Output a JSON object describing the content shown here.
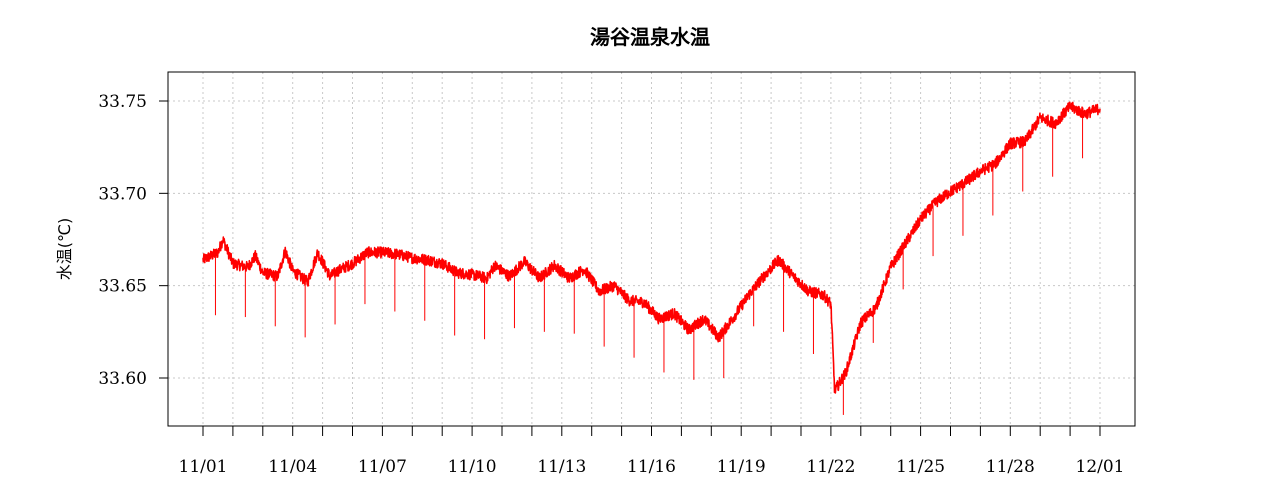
{
  "chart_data": {
    "type": "line",
    "title": "湯谷温泉水温",
    "ylabel": "水温(℃)",
    "xlabel": "",
    "x_tick_labels": [
      "11/01",
      "11/04",
      "11/07",
      "11/10",
      "11/13",
      "11/16",
      "11/19",
      "11/22",
      "11/25",
      "11/28",
      "12/01"
    ],
    "x_tick_days": [
      0,
      3,
      6,
      9,
      12,
      15,
      18,
      21,
      24,
      27,
      30
    ],
    "x_minor_tick_days": [
      0,
      1,
      2,
      3,
      4,
      5,
      6,
      7,
      8,
      9,
      10,
      11,
      12,
      13,
      14,
      15,
      16,
      17,
      18,
      19,
      20,
      21,
      22,
      23,
      24,
      25,
      26,
      27,
      28,
      29,
      30
    ],
    "y_ticks": [
      33.6,
      33.65,
      33.7,
      33.75
    ],
    "y_tick_labels": [
      "33.60",
      "33.65",
      "33.70",
      "33.75"
    ],
    "xlim": [
      "11/01",
      "12/01"
    ],
    "ylim": [
      33.575,
      33.765
    ],
    "grid": true,
    "legend": "none",
    "series": [
      {
        "color": "#ff0000",
        "points": [
          [
            "11/01 00:00",
            33.664
          ],
          [
            "11/01 12:00",
            33.668
          ],
          [
            "11/01 16:00",
            33.675
          ],
          [
            "11/02 00:00",
            33.662
          ],
          [
            "11/02 12:00",
            33.66
          ],
          [
            "11/02 18:00",
            33.666
          ],
          [
            "11/03 00:00",
            33.657
          ],
          [
            "11/03 12:00",
            33.655
          ],
          [
            "11/03 18:00",
            33.669
          ],
          [
            "11/04 00:00",
            33.658
          ],
          [
            "11/04 12:00",
            33.652
          ],
          [
            "11/04 20:00",
            33.668
          ],
          [
            "11/05 06:00",
            33.655
          ],
          [
            "11/05 12:00",
            33.658
          ],
          [
            "11/06 00:00",
            33.662
          ],
          [
            "11/06 12:00",
            33.668
          ],
          [
            "11/07 00:00",
            33.668
          ],
          [
            "11/07 12:00",
            33.667
          ],
          [
            "11/08 00:00",
            33.665
          ],
          [
            "11/08 12:00",
            33.664
          ],
          [
            "11/09 00:00",
            33.662
          ],
          [
            "11/09 12:00",
            33.657
          ],
          [
            "11/10 00:00",
            33.656
          ],
          [
            "11/10 12:00",
            33.654
          ],
          [
            "11/10 18:00",
            33.661
          ],
          [
            "11/11 06:00",
            33.655
          ],
          [
            "11/11 18:00",
            33.663
          ],
          [
            "11/12 06:00",
            33.654
          ],
          [
            "11/12 18:00",
            33.661
          ],
          [
            "11/13 06:00",
            33.654
          ],
          [
            "11/13 18:00",
            33.659
          ],
          [
            "11/14 06:00",
            33.647
          ],
          [
            "11/14 18:00",
            33.65
          ],
          [
            "11/15 06:00",
            33.642
          ],
          [
            "11/15 18:00",
            33.641
          ],
          [
            "11/16 06:00",
            33.632
          ],
          [
            "11/16 18:00",
            33.635
          ],
          [
            "11/17 06:00",
            33.626
          ],
          [
            "11/17 18:00",
            33.632
          ],
          [
            "11/18 06:00",
            33.622
          ],
          [
            "11/18 18:00",
            33.633
          ],
          [
            "11/19 06:00",
            33.645
          ],
          [
            "11/19 18:00",
            33.655
          ],
          [
            "11/20 06:00",
            33.664
          ],
          [
            "11/20 18:00",
            33.655
          ],
          [
            "11/21 06:00",
            33.647
          ],
          [
            "11/21 18:00",
            33.645
          ],
          [
            "11/22 00:00",
            33.64
          ],
          [
            "11/22 03:00",
            33.593
          ],
          [
            "11/22 12:00",
            33.603
          ],
          [
            "11/23 00:00",
            33.63
          ],
          [
            "11/23 12:00",
            33.638
          ],
          [
            "11/24 00:00",
            33.66
          ],
          [
            "11/24 12:00",
            33.673
          ],
          [
            "11/25 00:00",
            33.686
          ],
          [
            "11/25 12:00",
            33.695
          ],
          [
            "11/26 00:00",
            33.701
          ],
          [
            "11/26 12:00",
            33.706
          ],
          [
            "11/27 00:00",
            33.712
          ],
          [
            "11/27 12:00",
            33.716
          ],
          [
            "11/28 00:00",
            33.727
          ],
          [
            "11/28 12:00",
            33.728
          ],
          [
            "11/29 00:00",
            33.741
          ],
          [
            "11/29 12:00",
            33.738
          ],
          [
            "11/30 00:00",
            33.747
          ],
          [
            "11/30 12:00",
            33.743
          ],
          [
            "12/01 00:00",
            33.746
          ]
        ]
      }
    ],
    "dips": [
      [
        "11/01 10:00",
        33.634
      ],
      [
        "11/02 10:00",
        33.633
      ],
      [
        "11/03 10:00",
        33.628
      ],
      [
        "11/04 10:00",
        33.622
      ],
      [
        "11/05 10:00",
        33.629
      ],
      [
        "11/06 10:00",
        33.64
      ],
      [
        "11/07 10:00",
        33.636
      ],
      [
        "11/08 10:00",
        33.631
      ],
      [
        "11/09 10:00",
        33.623
      ],
      [
        "11/10 10:00",
        33.621
      ],
      [
        "11/11 10:00",
        33.627
      ],
      [
        "11/12 10:00",
        33.625
      ],
      [
        "11/13 10:00",
        33.624
      ],
      [
        "11/14 10:00",
        33.617
      ],
      [
        "11/15 10:00",
        33.611
      ],
      [
        "11/16 10:00",
        33.603
      ],
      [
        "11/17 10:00",
        33.599
      ],
      [
        "11/18 10:00",
        33.6
      ],
      [
        "11/19 10:00",
        33.628
      ],
      [
        "11/20 10:00",
        33.625
      ],
      [
        "11/21 10:00",
        33.613
      ],
      [
        "11/22 10:00",
        33.58
      ],
      [
        "11/23 10:00",
        33.619
      ],
      [
        "11/24 10:00",
        33.648
      ],
      [
        "11/25 10:00",
        33.666
      ],
      [
        "11/26 10:00",
        33.677
      ],
      [
        "11/27 10:00",
        33.688
      ],
      [
        "11/28 10:00",
        33.701
      ],
      [
        "11/29 10:00",
        33.709
      ],
      [
        "11/30 10:00",
        33.719
      ]
    ]
  }
}
